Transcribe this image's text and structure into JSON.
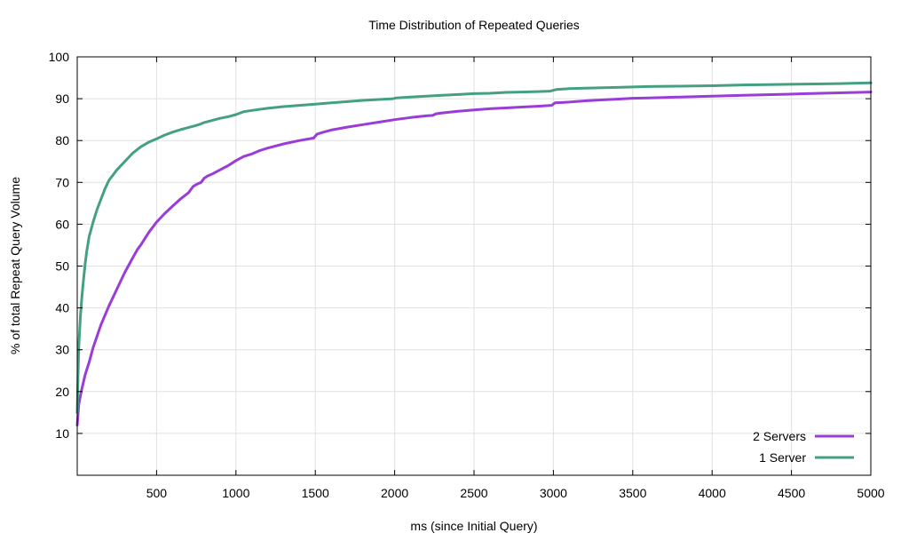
{
  "chart_data": {
    "type": "line",
    "title": "Time Distribution of Repeated Queries",
    "xlabel": "ms (since Initial Query)",
    "ylabel": "% of total Repeat Query Volume",
    "xlim": [
      0,
      5000
    ],
    "ylim": [
      0,
      100
    ],
    "xticks": [
      500,
      1000,
      1500,
      2000,
      2500,
      3000,
      3500,
      4000,
      4500,
      5000
    ],
    "yticks": [
      10,
      20,
      30,
      40,
      50,
      60,
      70,
      80,
      90,
      100
    ],
    "grid": true,
    "legend": "bottom-right",
    "series": [
      {
        "name": "2  Servers",
        "color": "#9a3cd8",
        "x": [
          0,
          10,
          25,
          50,
          75,
          100,
          150,
          200,
          250,
          300,
          350,
          380,
          400,
          450,
          500,
          550,
          600,
          650,
          700,
          730,
          750,
          780,
          800,
          820,
          850,
          900,
          950,
          1000,
          1050,
          1100,
          1150,
          1200,
          1300,
          1400,
          1490,
          1510,
          1550,
          1600,
          1700,
          1800,
          1900,
          2000,
          2100,
          2200,
          2240,
          2260,
          2300,
          2400,
          2500,
          2600,
          2700,
          2800,
          2900,
          2990,
          3010,
          3100,
          3200,
          3300,
          3400,
          3500,
          3600,
          3700,
          3800,
          3900,
          4000,
          4200,
          4400,
          4600,
          4800,
          5000
        ],
        "y": [
          12,
          17,
          20,
          24,
          27,
          30.5,
          36,
          40.5,
          44.5,
          48.5,
          52,
          54,
          55,
          58,
          60.5,
          62.5,
          64.3,
          66,
          67.5,
          69,
          69.5,
          70,
          71,
          71.5,
          72,
          73,
          74,
          75.2,
          76.2,
          76.8,
          77.6,
          78.2,
          79.2,
          80,
          80.6,
          81.5,
          82,
          82.5,
          83.2,
          83.8,
          84.4,
          85,
          85.5,
          85.9,
          86,
          86.4,
          86.6,
          87,
          87.3,
          87.6,
          87.8,
          88,
          88.2,
          88.4,
          89,
          89.2,
          89.5,
          89.7,
          89.9,
          90.1,
          90.2,
          90.3,
          90.4,
          90.5,
          90.6,
          90.8,
          91,
          91.2,
          91.4,
          91.6
        ]
      },
      {
        "name": "1 Server",
        "color": "#44a080",
        "x": [
          0,
          5,
          10,
          20,
          30,
          40,
          50,
          60,
          75,
          100,
          125,
          150,
          175,
          200,
          250,
          300,
          320,
          350,
          400,
          450,
          500,
          550,
          600,
          650,
          700,
          750,
          780,
          800,
          850,
          900,
          950,
          1000,
          1020,
          1050,
          1100,
          1200,
          1300,
          1400,
          1500,
          1600,
          1700,
          1800,
          1900,
          1990,
          2010,
          2100,
          2200,
          2300,
          2400,
          2500,
          2600,
          2700,
          2800,
          2900,
          2980,
          3020,
          3100,
          3200,
          3400,
          3600,
          3800,
          4000,
          4200,
          4400,
          4600,
          4800,
          5000
        ],
        "y": [
          15,
          24,
          31,
          38,
          43,
          47,
          50.5,
          53.5,
          57,
          60.5,
          63.5,
          66,
          68.5,
          70.5,
          73,
          75,
          75.8,
          77,
          78.5,
          79.6,
          80.4,
          81.3,
          82,
          82.6,
          83.1,
          83.6,
          84,
          84.3,
          84.8,
          85.3,
          85.7,
          86.2,
          86.5,
          86.9,
          87.2,
          87.7,
          88.1,
          88.4,
          88.7,
          89,
          89.3,
          89.6,
          89.8,
          90,
          90.2,
          90.4,
          90.6,
          90.8,
          91,
          91.2,
          91.3,
          91.5,
          91.6,
          91.7,
          91.8,
          92.2,
          92.4,
          92.5,
          92.7,
          92.9,
          93,
          93.1,
          93.3,
          93.4,
          93.5,
          93.6,
          93.8
        ]
      }
    ]
  }
}
